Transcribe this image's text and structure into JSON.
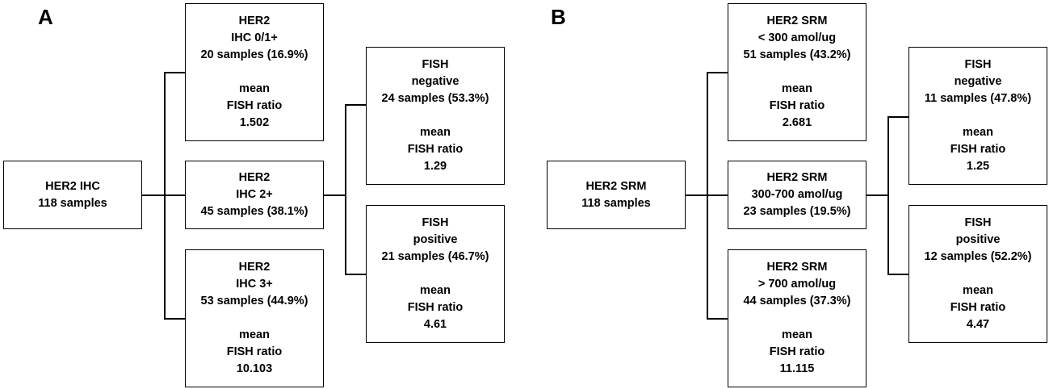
{
  "panels": [
    {
      "label": "A",
      "root": [
        "HER2 IHC",
        "118 samples"
      ],
      "level1": [
        {
          "lines": [
            "HER2",
            "IHC 0/1+",
            "20 samples (16.9%)"
          ],
          "mean": [
            "mean",
            "FISH ratio",
            "1.502"
          ]
        },
        {
          "lines": [
            "HER2",
            "IHC 2+",
            "45 samples (38.1%)"
          ],
          "mean": []
        },
        {
          "lines": [
            "HER2",
            "IHC 3+",
            "53 samples (44.9%)"
          ],
          "mean": [
            "mean",
            "FISH ratio",
            "10.103"
          ]
        }
      ],
      "level2": [
        {
          "lines": [
            "FISH",
            "negative",
            "24 samples (53.3%)"
          ],
          "mean": [
            "mean",
            "FISH ratio",
            "1.29"
          ]
        },
        {
          "lines": [
            "FISH",
            "positive",
            "21 samples (46.7%)"
          ],
          "mean": [
            "mean",
            "FISH ratio",
            "4.61"
          ]
        }
      ]
    },
    {
      "label": "B",
      "root": [
        "HER2 SRM",
        "118 samples"
      ],
      "level1": [
        {
          "lines": [
            "HER2 SRM",
            "< 300 amol/ug",
            "51 samples (43.2%)"
          ],
          "mean": [
            "mean",
            "FISH ratio",
            "2.681"
          ]
        },
        {
          "lines": [
            "HER2 SRM",
            "300-700 amol/ug",
            "23 samples (19.5%)"
          ],
          "mean": []
        },
        {
          "lines": [
            "HER2 SRM",
            "> 700 amol/ug",
            "44 samples (37.3%)"
          ],
          "mean": [
            "mean",
            "FISH ratio",
            "11.115"
          ]
        }
      ],
      "level2": [
        {
          "lines": [
            "FISH",
            "negative",
            "11 samples (47.8%)"
          ],
          "mean": [
            "mean",
            "FISH ratio",
            "1.25"
          ]
        },
        {
          "lines": [
            "FISH",
            "positive",
            "12 samples (52.2%)"
          ],
          "mean": [
            "mean",
            "FISH ratio",
            "4.47"
          ]
        }
      ]
    }
  ]
}
